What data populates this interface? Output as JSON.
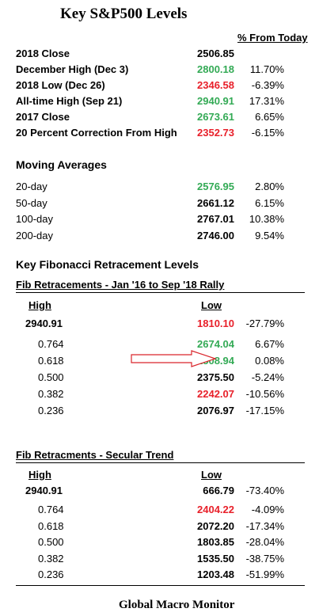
{
  "title": "Key S&P500 Levels",
  "pct_header": "% From Today",
  "key_levels": [
    {
      "label": "2018 Close",
      "value": "2506.85",
      "pct": "",
      "color": "black"
    },
    {
      "label": "December High (Dec 3)",
      "value": "2800.18",
      "pct": "11.70%",
      "color": "green"
    },
    {
      "label": "2018 Low (Dec 26)",
      "value": "2346.58",
      "pct": "-6.39%",
      "color": "red"
    },
    {
      "label": "All-time High (Sep 21)",
      "value": "2940.91",
      "pct": "17.31%",
      "color": "green"
    },
    {
      "label": "2017 Close",
      "value": "2673.61",
      "pct": "6.65%",
      "color": "green"
    },
    {
      "label": "20 Percent Correction From High",
      "value": "2352.73",
      "pct": "-6.15%",
      "color": "red"
    }
  ],
  "ma_title": "Moving Averages",
  "moving_averages": [
    {
      "label": "20-day",
      "value": "2576.95",
      "pct": "2.80%",
      "color": "green"
    },
    {
      "label": "50-day",
      "value": "2661.12",
      "pct": "6.15%",
      "color": "black"
    },
    {
      "label": "100-day",
      "value": "2767.01",
      "pct": "10.38%",
      "color": "black"
    },
    {
      "label": "200-day",
      "value": "2746.00",
      "pct": "9.54%",
      "color": "black"
    }
  ],
  "fib_title": "Key Fibonacci Retracement Levels",
  "fib1": {
    "title": "Fib Retracements - Jan '16 to Sep '18 Rally",
    "high_label": "High",
    "low_label": "Low",
    "rows": [
      {
        "label": "2940.91",
        "value": "1810.10",
        "pct": "-27.79%",
        "color": "red",
        "bold_label": true
      },
      {
        "label": "0.764",
        "value": "2674.04",
        "pct": "6.67%",
        "color": "green",
        "bold_label": false
      },
      {
        "label": "0.618",
        "value": "2508.94",
        "pct": "0.08%",
        "color": "green",
        "bold_label": false
      },
      {
        "label": "0.500",
        "value": "2375.50",
        "pct": "-5.24%",
        "color": "black",
        "bold_label": false
      },
      {
        "label": "0.382",
        "value": "2242.07",
        "pct": "-10.56%",
        "color": "red",
        "bold_label": false
      },
      {
        "label": "0.236",
        "value": "2076.97",
        "pct": "-17.15%",
        "color": "black",
        "bold_label": false
      }
    ]
  },
  "fib2": {
    "title": "Fib Retracments - Secular Trend",
    "high_label": "High",
    "low_label": "Low",
    "rows": [
      {
        "label": "2940.91",
        "value": "666.79",
        "pct": "-73.40%",
        "color": "black",
        "bold_label": true
      },
      {
        "label": "0.764",
        "value": "2404.22",
        "pct": "-4.09%",
        "color": "red",
        "bold_label": false
      },
      {
        "label": "0.618",
        "value": "2072.20",
        "pct": "-17.34%",
        "color": "black",
        "bold_label": false
      },
      {
        "label": "0.500",
        "value": "1803.85",
        "pct": "-28.04%",
        "color": "black",
        "bold_label": false
      },
      {
        "label": "0.382",
        "value": "1535.50",
        "pct": "-38.75%",
        "color": "black",
        "bold_label": false
      },
      {
        "label": "0.236",
        "value": "1203.48",
        "pct": "-51.99%",
        "color": "black",
        "bold_label": false
      }
    ]
  },
  "footer": "Global Macro Monitor",
  "colors": {
    "green": "#33aa55",
    "red": "#e8202a",
    "arrow": "#d9252b"
  }
}
